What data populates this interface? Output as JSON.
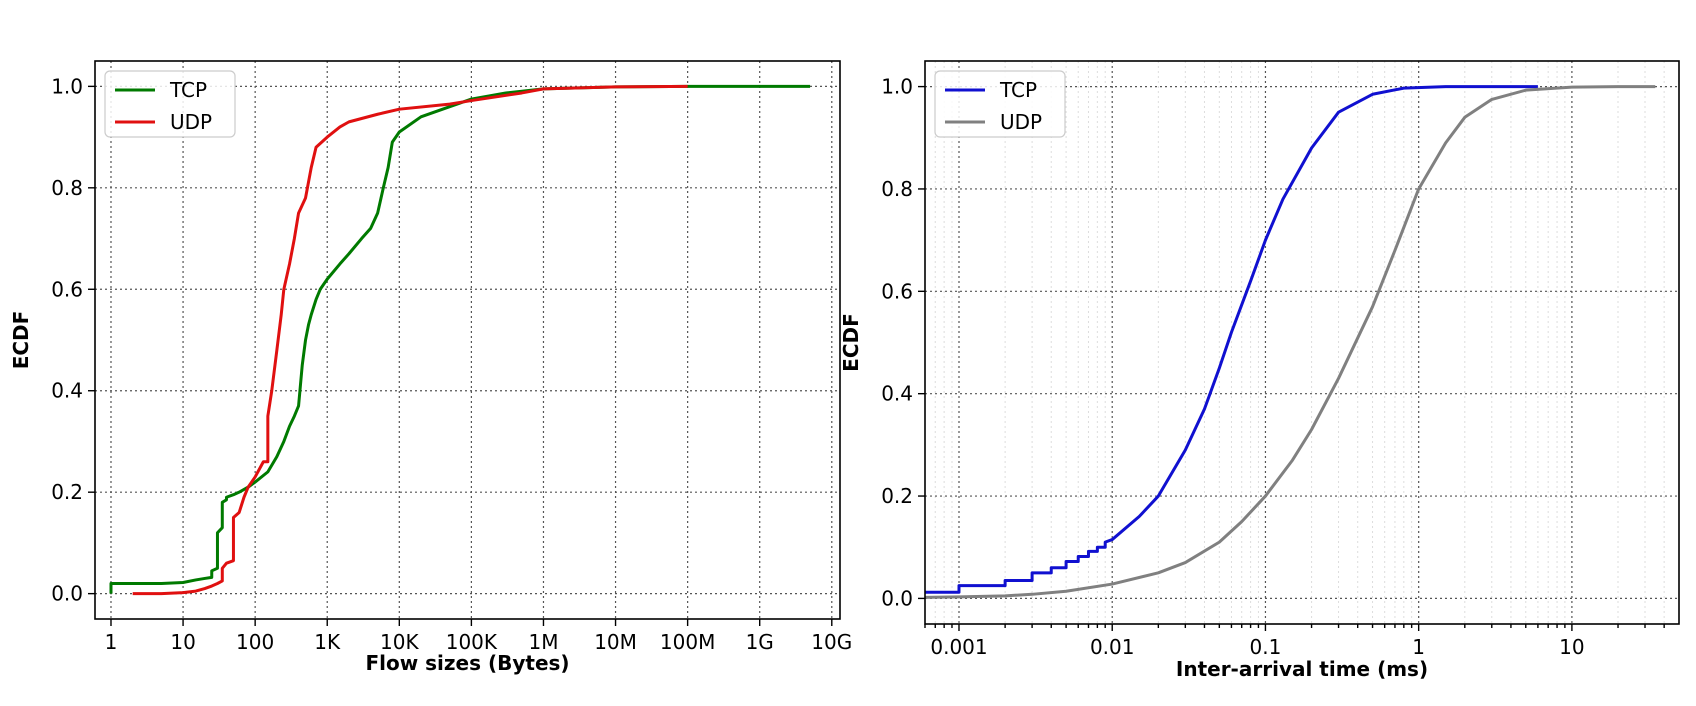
{
  "chart_data": [
    {
      "type": "line",
      "xscale": "log",
      "xlabel": "Flow sizes (Bytes)",
      "ylabel": "ECDF",
      "xlim": [
        0.6,
        13000000000.0
      ],
      "ylim": [
        -0.05,
        1.05
      ],
      "grid": true,
      "legend_placement": "upper-left",
      "x_ticks": [
        1,
        10,
        100,
        1000,
        10000,
        100000,
        1000000,
        10000000,
        100000000,
        1000000000,
        10000000000
      ],
      "x_tick_labels": [
        "1",
        "10",
        "100",
        "1K",
        "10K",
        "100K",
        "1M",
        "10M",
        "100M",
        "1G",
        "10G"
      ],
      "y_ticks": [
        0.0,
        0.2,
        0.4,
        0.6,
        0.8,
        1.0
      ],
      "y_tick_labels": [
        "0.0",
        "0.2",
        "0.4",
        "0.6",
        "0.8",
        "1.0"
      ],
      "series": [
        {
          "name": "TCP",
          "color": "#007a00",
          "points": [
            [
              1,
              0
            ],
            [
              1,
              0.02
            ],
            [
              5,
              0.02
            ],
            [
              10,
              0.022
            ],
            [
              15,
              0.027
            ],
            [
              20,
              0.03
            ],
            [
              25,
              0.032
            ],
            [
              25,
              0.045
            ],
            [
              30,
              0.05
            ],
            [
              30,
              0.12
            ],
            [
              35,
              0.13
            ],
            [
              35,
              0.18
            ],
            [
              40,
              0.185
            ],
            [
              40,
              0.19
            ],
            [
              50,
              0.195
            ],
            [
              60,
              0.2
            ],
            [
              80,
              0.21
            ],
            [
              100,
              0.22
            ],
            [
              150,
              0.24
            ],
            [
              200,
              0.27
            ],
            [
              250,
              0.3
            ],
            [
              300,
              0.33
            ],
            [
              350,
              0.35
            ],
            [
              400,
              0.37
            ],
            [
              450,
              0.45
            ],
            [
              500,
              0.5
            ],
            [
              550,
              0.53
            ],
            [
              600,
              0.55
            ],
            [
              700,
              0.58
            ],
            [
              800,
              0.6
            ],
            [
              1000,
              0.62
            ],
            [
              1500,
              0.65
            ],
            [
              2000,
              0.67
            ],
            [
              3000,
              0.7
            ],
            [
              4000,
              0.72
            ],
            [
              5000,
              0.75
            ],
            [
              6000,
              0.8
            ],
            [
              7000,
              0.84
            ],
            [
              8000,
              0.89
            ],
            [
              10000,
              0.91
            ],
            [
              20000,
              0.94
            ],
            [
              50000,
              0.96
            ],
            [
              100000,
              0.975
            ],
            [
              300000,
              0.987
            ],
            [
              1000000,
              0.995
            ],
            [
              10000000,
              0.999
            ],
            [
              100000000,
              1.0
            ],
            [
              1000000000,
              1.0
            ],
            [
              5000000000,
              1.0
            ]
          ]
        },
        {
          "name": "UDP",
          "color": "#e01010",
          "points": [
            [
              2,
              0
            ],
            [
              5,
              0
            ],
            [
              10,
              0.002
            ],
            [
              15,
              0.005
            ],
            [
              20,
              0.01
            ],
            [
              25,
              0.015
            ],
            [
              30,
              0.02
            ],
            [
              35,
              0.025
            ],
            [
              35,
              0.05
            ],
            [
              40,
              0.06
            ],
            [
              50,
              0.065
            ],
            [
              50,
              0.15
            ],
            [
              60,
              0.16
            ],
            [
              70,
              0.19
            ],
            [
              80,
              0.21
            ],
            [
              100,
              0.23
            ],
            [
              130,
              0.26
            ],
            [
              150,
              0.26
            ],
            [
              150,
              0.35
            ],
            [
              170,
              0.4
            ],
            [
              200,
              0.48
            ],
            [
              230,
              0.55
            ],
            [
              250,
              0.6
            ],
            [
              300,
              0.65
            ],
            [
              350,
              0.7
            ],
            [
              400,
              0.75
            ],
            [
              500,
              0.78
            ],
            [
              600,
              0.84
            ],
            [
              700,
              0.88
            ],
            [
              1000,
              0.9
            ],
            [
              1500,
              0.92
            ],
            [
              2000,
              0.93
            ],
            [
              5000,
              0.945
            ],
            [
              10000,
              0.955
            ],
            [
              50000,
              0.965
            ],
            [
              100000,
              0.972
            ],
            [
              500000,
              0.987
            ],
            [
              1000000,
              0.995
            ],
            [
              10000000,
              0.999
            ],
            [
              100000000,
              1.0
            ]
          ]
        }
      ]
    },
    {
      "type": "line",
      "xscale": "log",
      "xlabel": "Inter-arrival time (ms)",
      "ylabel": "ECDF",
      "xlim": [
        0.0006,
        50
      ],
      "ylim": [
        -0.05,
        1.05
      ],
      "grid": true,
      "minor_grid": true,
      "legend_placement": "upper-left",
      "x_ticks": [
        0.001,
        0.01,
        0.1,
        1,
        10
      ],
      "x_tick_labels": [
        "0.001",
        "0.01",
        "0.1",
        "1",
        "10"
      ],
      "y_ticks": [
        0.0,
        0.2,
        0.4,
        0.6,
        0.8,
        1.0
      ],
      "y_tick_labels": [
        "0.0",
        "0.2",
        "0.4",
        "0.6",
        "0.8",
        "1.0"
      ],
      "series": [
        {
          "name": "TCP",
          "color": "#1010d0",
          "points": [
            [
              0.0006,
              0.012
            ],
            [
              0.001,
              0.012
            ],
            [
              0.001,
              0.025
            ],
            [
              0.002,
              0.025
            ],
            [
              0.002,
              0.035
            ],
            [
              0.003,
              0.035
            ],
            [
              0.003,
              0.05
            ],
            [
              0.004,
              0.05
            ],
            [
              0.004,
              0.06
            ],
            [
              0.005,
              0.06
            ],
            [
              0.005,
              0.072
            ],
            [
              0.006,
              0.072
            ],
            [
              0.006,
              0.082
            ],
            [
              0.007,
              0.082
            ],
            [
              0.007,
              0.092
            ],
            [
              0.008,
              0.092
            ],
            [
              0.008,
              0.1
            ],
            [
              0.009,
              0.1
            ],
            [
              0.009,
              0.11
            ],
            [
              0.01,
              0.115
            ],
            [
              0.015,
              0.16
            ],
            [
              0.02,
              0.2
            ],
            [
              0.03,
              0.29
            ],
            [
              0.04,
              0.37
            ],
            [
              0.05,
              0.45
            ],
            [
              0.06,
              0.52
            ],
            [
              0.08,
              0.62
            ],
            [
              0.1,
              0.7
            ],
            [
              0.13,
              0.78
            ],
            [
              0.2,
              0.88
            ],
            [
              0.3,
              0.95
            ],
            [
              0.5,
              0.985
            ],
            [
              0.8,
              0.997
            ],
            [
              1.5,
              1.0
            ],
            [
              6,
              1.0
            ]
          ]
        },
        {
          "name": "UDP",
          "color": "#808080",
          "points": [
            [
              0.0006,
              0.002
            ],
            [
              0.001,
              0.003
            ],
            [
              0.002,
              0.005
            ],
            [
              0.003,
              0.008
            ],
            [
              0.005,
              0.014
            ],
            [
              0.01,
              0.028
            ],
            [
              0.02,
              0.05
            ],
            [
              0.03,
              0.07
            ],
            [
              0.05,
              0.11
            ],
            [
              0.07,
              0.15
            ],
            [
              0.1,
              0.2
            ],
            [
              0.15,
              0.27
            ],
            [
              0.2,
              0.33
            ],
            [
              0.3,
              0.43
            ],
            [
              0.5,
              0.57
            ],
            [
              0.7,
              0.68
            ],
            [
              1,
              0.8
            ],
            [
              1.5,
              0.89
            ],
            [
              2,
              0.94
            ],
            [
              3,
              0.975
            ],
            [
              5,
              0.993
            ],
            [
              10,
              0.999
            ],
            [
              20,
              1.0
            ],
            [
              35,
              1.0
            ]
          ]
        }
      ]
    }
  ]
}
